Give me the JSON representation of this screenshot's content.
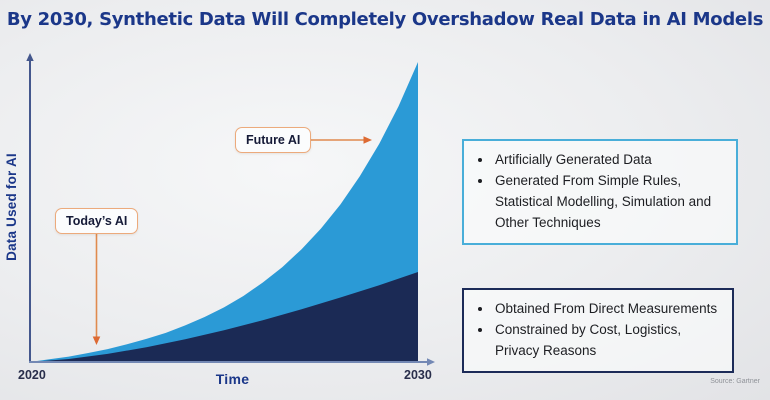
{
  "title": "By 2030, Synthetic Data Will Completely Overshadow Real Data in AI Models",
  "source": "Source: Gartner",
  "chart_data": {
    "type": "area",
    "title": "By 2030, Synthetic Data Will Completely Overshadow Real Data in AI Models",
    "xlabel": "Time",
    "ylabel": "Data Used for AI",
    "x_ticks": [
      "2020",
      "2030"
    ],
    "x_range": [
      2020,
      2030
    ],
    "grid": false,
    "legend_position": "none",
    "series": [
      {
        "name": "Synthetic Data (Artificially Generated)",
        "color": "#2b9ad6",
        "points": [
          [
            0,
            0
          ],
          [
            0.05,
            0.009
          ],
          [
            0.1,
            0.018
          ],
          [
            0.15,
            0.03
          ],
          [
            0.2,
            0.043
          ],
          [
            0.25,
            0.059
          ],
          [
            0.3,
            0.077
          ],
          [
            0.35,
            0.097
          ],
          [
            0.4,
            0.122
          ],
          [
            0.45,
            0.15
          ],
          [
            0.5,
            0.182
          ],
          [
            0.55,
            0.22
          ],
          [
            0.6,
            0.265
          ],
          [
            0.65,
            0.316
          ],
          [
            0.7,
            0.376
          ],
          [
            0.75,
            0.445
          ],
          [
            0.8,
            0.525
          ],
          [
            0.85,
            0.619
          ],
          [
            0.9,
            0.727
          ],
          [
            0.95,
            0.853
          ],
          [
            1,
            1
          ]
        ]
      },
      {
        "name": "Real Data (Obtained From Direct Measurements)",
        "color": "#1b2a55",
        "points": [
          [
            0,
            0
          ],
          [
            0.1,
            0.01
          ],
          [
            0.2,
            0.027
          ],
          [
            0.3,
            0.049
          ],
          [
            0.4,
            0.076
          ],
          [
            0.5,
            0.106
          ],
          [
            0.6,
            0.139
          ],
          [
            0.7,
            0.176
          ],
          [
            0.8,
            0.215
          ],
          [
            0.9,
            0.256
          ],
          [
            1,
            0.3
          ]
        ]
      }
    ],
    "annotations": [
      {
        "label": "Future AI",
        "target": "synthetic curve"
      },
      {
        "label": "Today’s AI",
        "target": "real data area"
      }
    ]
  },
  "legend_boxes": [
    {
      "accent_color": "#49aed9",
      "bullets": [
        "Artificially Generated Data",
        "Generated From Simple Rules, Statistical Modelling, Simulation and Other Techniques"
      ]
    },
    {
      "accent_color": "#1c2b58",
      "bullets": [
        "Obtained From Direct Measurements",
        "Constrained by Cost, Logistics, Privacy Reasons"
      ]
    }
  ],
  "colors": {
    "title_navy": "#1b3789",
    "synthetic_blue": "#2b9ad6",
    "real_navy": "#1b2a55",
    "callout_border_orange": "#ecaa7c",
    "arrow_orange": "#e08a4e",
    "arrowhead_orange": "#dd6a33",
    "axis_navy": "#44578d"
  }
}
